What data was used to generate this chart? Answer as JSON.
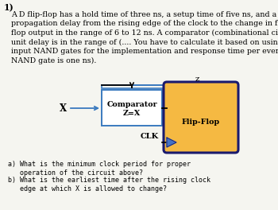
{
  "title_num": "1)",
  "paragraph": "A D flip-flop has a hold time of three ns, a setup time of five ns, and a\npropagation delay from the rising edge of the clock to the change in flip-\nflop output in the range of 6 to 12 ns. A comparator (combinational circuit)\nunit delay is in the range of (.... You have to calculate it based on using 2-\ninput NAND gates for the implementation and response time per every\nNAND gate is one ns).",
  "z_label": "z",
  "x_label": "X",
  "clk_label": "CLK",
  "comparator_label1": "Comparator",
  "comparator_label2": "Z=X",
  "flipflop_label": "Flip-Flop",
  "q_a": "a) What is the minimum clock period for proper\n   operation of the circuit above?",
  "q_b": "b) What is the earliest time after the rising clock\n   edge at which X is allowed to change?",
  "bg_color": "#f5f5f0",
  "comparator_box_color": "#ffffff",
  "comparator_box_edge": "#3a7abf",
  "flipflop_box_color": "#f5b942",
  "flipflop_box_edge": "#1a1a6e",
  "feedback_line_color": "#3a7abf",
  "clk_arrow_color": "#4472c4",
  "x_line_color": "#3a7abf",
  "font_size_para": 6.8,
  "font_size_label": 7.5,
  "font_size_q": 6.0
}
